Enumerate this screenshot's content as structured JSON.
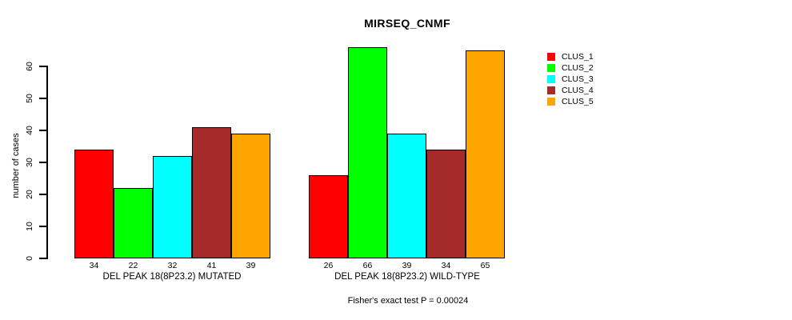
{
  "title": "MIRSEQ_CNMF",
  "footer": "Fisher's exact test P = 0.00024",
  "y_axis": {
    "label": "number of cases",
    "ticks": [
      0,
      10,
      20,
      30,
      40,
      50,
      60
    ]
  },
  "legend": {
    "position": "right",
    "items": [
      {
        "label": "CLUS_1",
        "color": "#FF0000"
      },
      {
        "label": "CLUS_2",
        "color": "#00FF00"
      },
      {
        "label": "CLUS_3",
        "color": "#00FFFF"
      },
      {
        "label": "CLUS_4",
        "color": "#A52A2A"
      },
      {
        "label": "CLUS_5",
        "color": "#FFA500"
      }
    ]
  },
  "chart_data": {
    "type": "bar",
    "title": "MIRSEQ_CNMF",
    "xlabel": "",
    "ylabel": "number of cases",
    "ylim": [
      0,
      66
    ],
    "yticks": [
      0,
      10,
      20,
      30,
      40,
      50,
      60
    ],
    "grid": false,
    "legend_position": "right",
    "categories": [
      "DEL PEAK 18(8P23.2) MUTATED",
      "DEL PEAK 18(8P23.2) WILD-TYPE"
    ],
    "series": [
      {
        "name": "CLUS_1",
        "color": "#FF0000",
        "values": [
          34,
          26
        ]
      },
      {
        "name": "CLUS_2",
        "color": "#00FF00",
        "values": [
          22,
          66
        ]
      },
      {
        "name": "CLUS_3",
        "color": "#00FFFF",
        "values": [
          32,
          39
        ]
      },
      {
        "name": "CLUS_4",
        "color": "#A52A2A",
        "values": [
          41,
          34
        ]
      },
      {
        "name": "CLUS_5",
        "color": "#FFA500",
        "values": [
          39,
          65
        ]
      }
    ],
    "bar_value_labels": [
      [
        34,
        22,
        32,
        41,
        39
      ],
      [
        26,
        66,
        39,
        34,
        65
      ]
    ],
    "annotation": "Fisher's exact test P = 0.00024"
  }
}
